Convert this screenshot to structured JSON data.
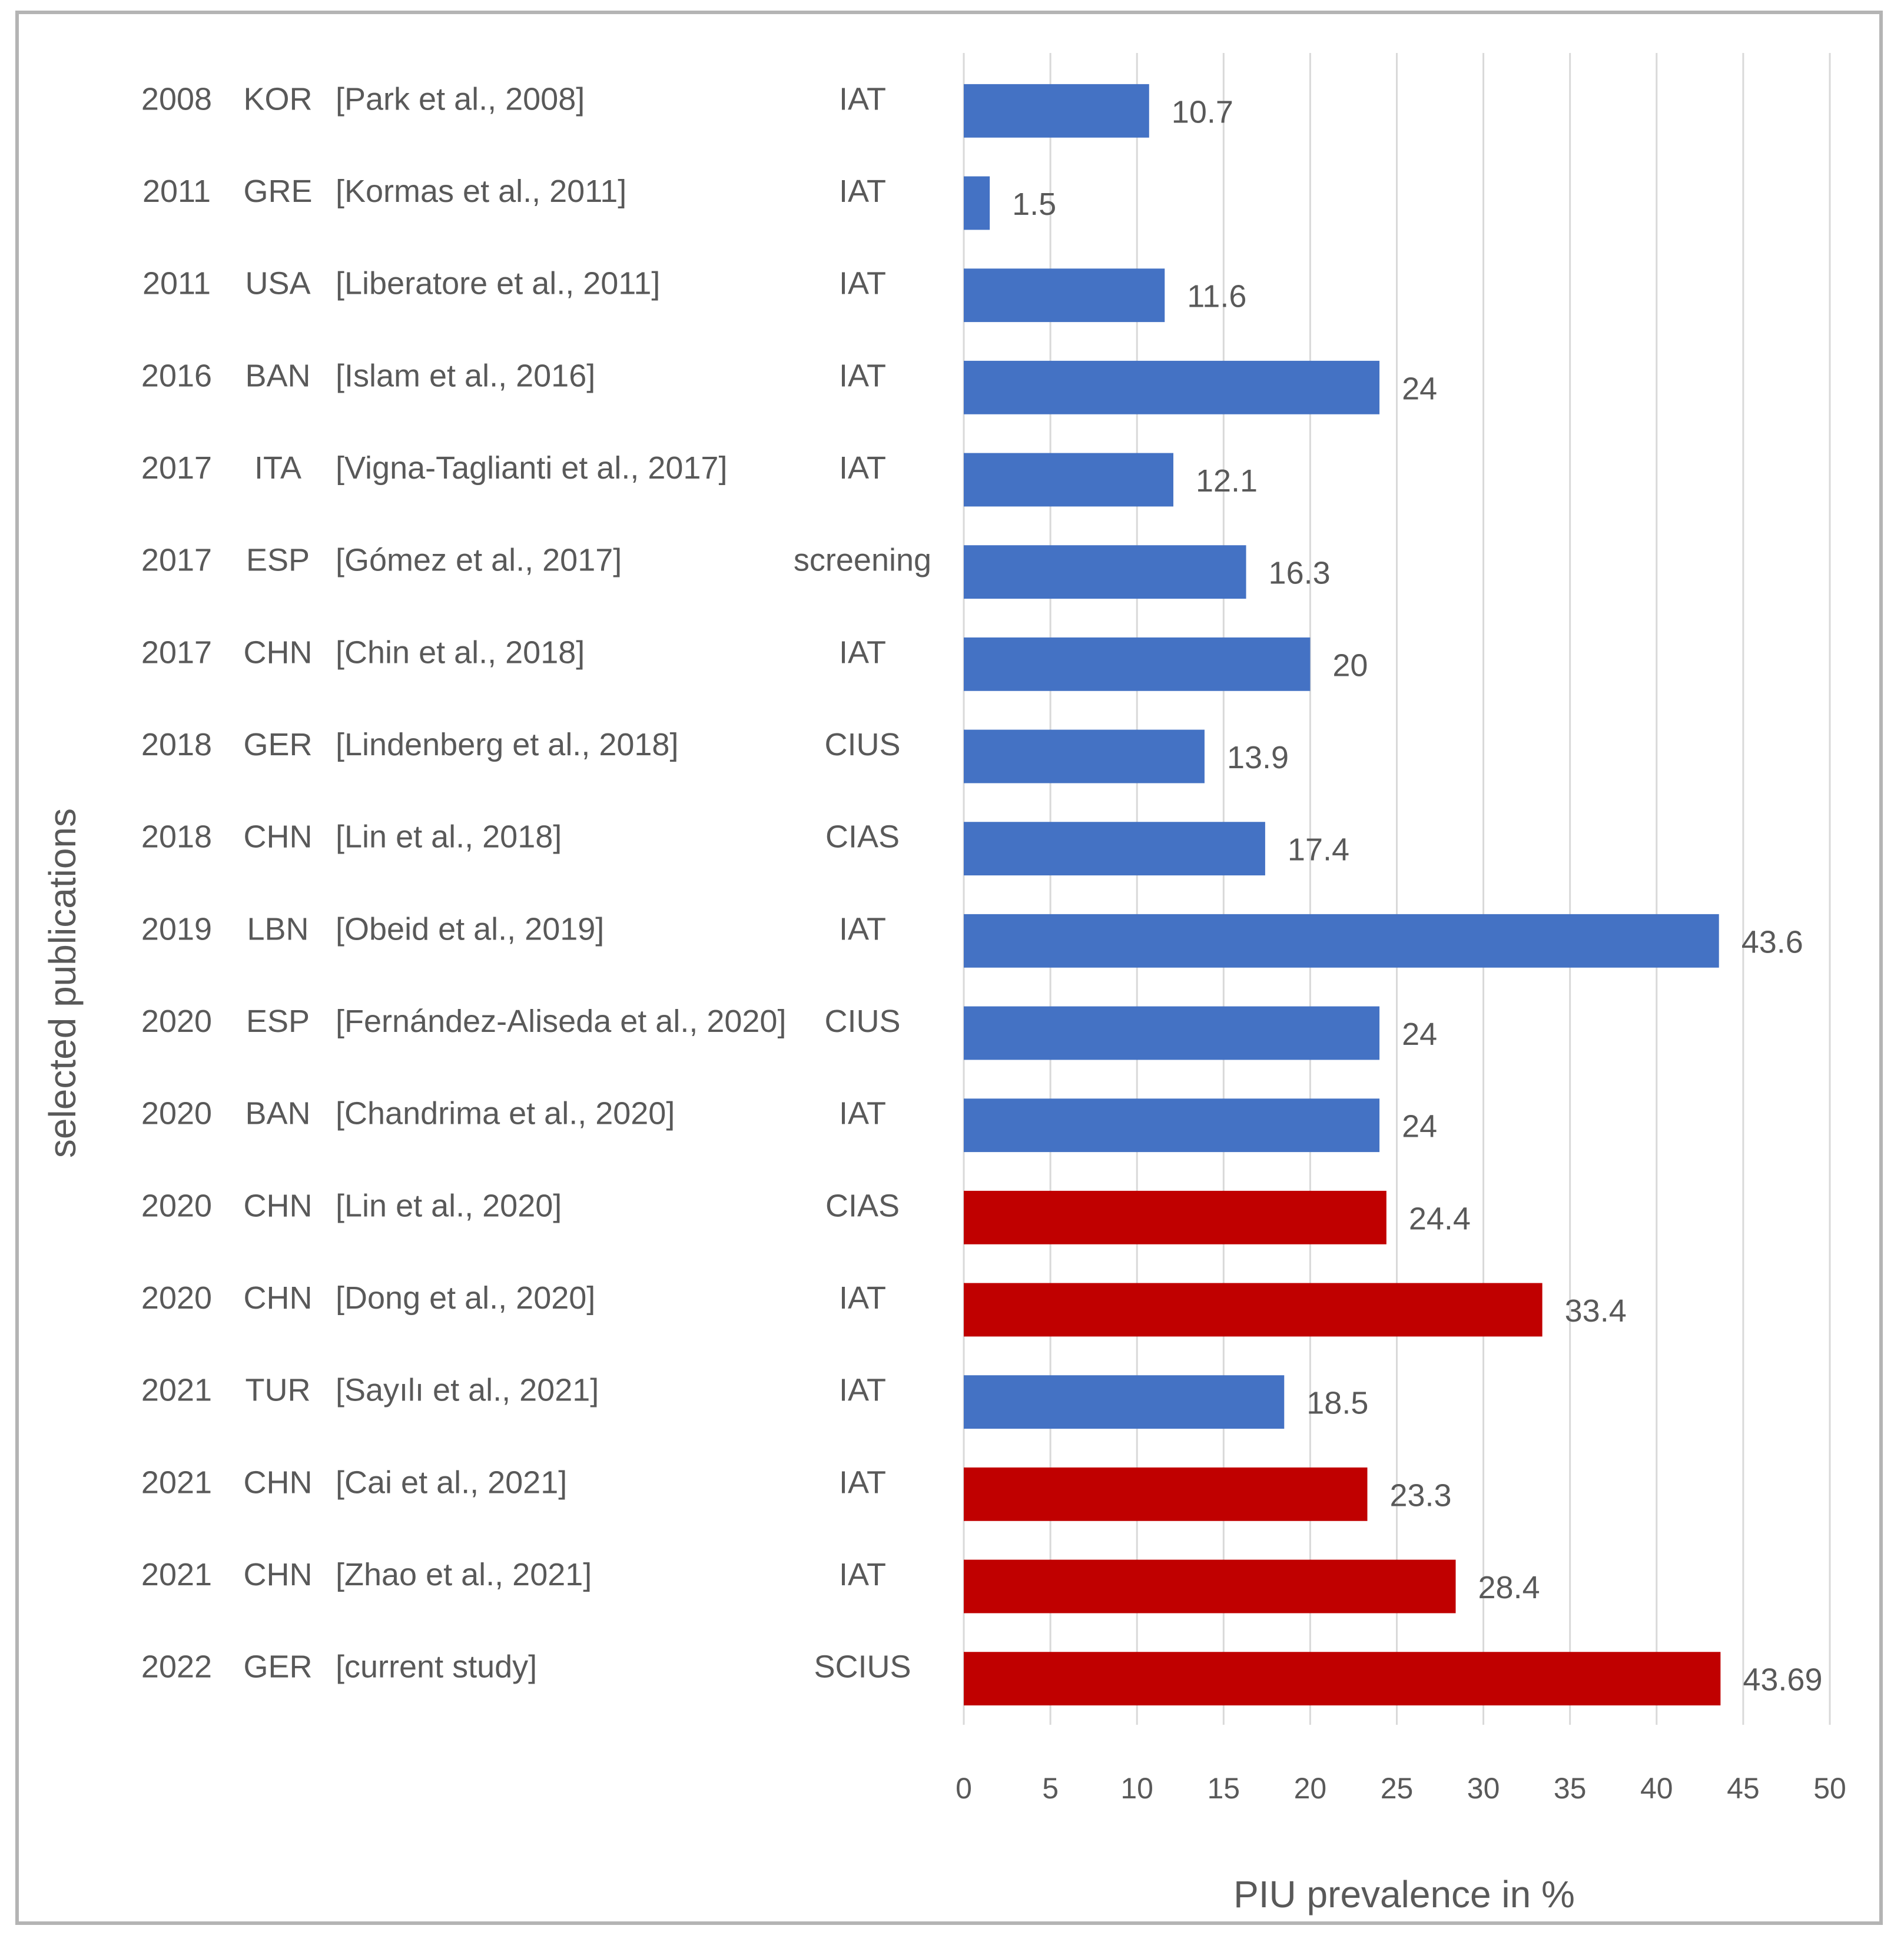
{
  "chart_data": {
    "type": "bar",
    "orientation": "horizontal",
    "xlabel": "PIU prevalence in %",
    "ylabel": "selected publications",
    "xlim": [
      0,
      50
    ],
    "xticks": [
      0,
      5,
      10,
      15,
      20,
      25,
      30,
      35,
      40,
      45,
      50
    ],
    "grid": true,
    "colors": {
      "blue": "#4472c4",
      "red": "#c00000"
    },
    "rows": [
      {
        "year": "2008",
        "country": "KOR",
        "ref": "[Park et al., 2008]",
        "instrument": "IAT",
        "value": 10.7,
        "label": "10.7",
        "color": "blue"
      },
      {
        "year": "2011",
        "country": "GRE",
        "ref": "[Kormas et al., 2011]",
        "instrument": "IAT",
        "value": 1.5,
        "label": "1.5",
        "color": "blue"
      },
      {
        "year": "2011",
        "country": "USA",
        "ref": "[Liberatore et al., 2011]",
        "instrument": "IAT",
        "value": 11.6,
        "label": "11.6",
        "color": "blue"
      },
      {
        "year": "2016",
        "country": "BAN",
        "ref": "[Islam et al., 2016]",
        "instrument": "IAT",
        "value": 24,
        "label": "24",
        "color": "blue"
      },
      {
        "year": "2017",
        "country": "ITA",
        "ref": "[Vigna-Taglianti et al., 2017]",
        "instrument": "IAT",
        "value": 12.1,
        "label": "12.1",
        "color": "blue"
      },
      {
        "year": "2017",
        "country": "ESP",
        "ref": "[Gómez et al., 2017]",
        "instrument": "screening",
        "value": 16.3,
        "label": "16.3",
        "color": "blue"
      },
      {
        "year": "2017",
        "country": "CHN",
        "ref": "[Chin et al., 2018]",
        "instrument": "IAT",
        "value": 20,
        "label": "20",
        "color": "blue"
      },
      {
        "year": "2018",
        "country": "GER",
        "ref": "[Lindenberg et al., 2018]",
        "instrument": "CIUS",
        "value": 13.9,
        "label": "13.9",
        "color": "blue"
      },
      {
        "year": "2018",
        "country": "CHN",
        "ref": "[Lin et al., 2018]",
        "instrument": "CIAS",
        "value": 17.4,
        "label": "17.4",
        "color": "blue"
      },
      {
        "year": "2019",
        "country": "LBN",
        "ref": "[Obeid et al., 2019]",
        "instrument": "IAT",
        "value": 43.6,
        "label": "43.6",
        "color": "blue"
      },
      {
        "year": "2020",
        "country": "ESP",
        "ref": "[Fernández-Aliseda et al., 2020]",
        "instrument": "CIUS",
        "value": 24,
        "label": "24",
        "color": "blue"
      },
      {
        "year": "2020",
        "country": "BAN",
        "ref": "[Chandrima et al., 2020]",
        "instrument": "IAT",
        "value": 24,
        "label": "24",
        "color": "blue"
      },
      {
        "year": "2020",
        "country": "CHN",
        "ref": "[Lin et al., 2020]",
        "instrument": "CIAS",
        "value": 24.4,
        "label": "24.4",
        "color": "red"
      },
      {
        "year": "2020",
        "country": "CHN",
        "ref": "[Dong et al., 2020]",
        "instrument": "IAT",
        "value": 33.4,
        "label": "33.4",
        "color": "red"
      },
      {
        "year": "2021",
        "country": "TUR",
        "ref": "[Sayılı et al., 2021]",
        "instrument": "IAT",
        "value": 18.5,
        "label": "18.5",
        "color": "blue"
      },
      {
        "year": "2021",
        "country": "CHN",
        "ref": "[Cai et al., 2021]",
        "instrument": "IAT",
        "value": 23.3,
        "label": "23.3",
        "color": "red"
      },
      {
        "year": "2021",
        "country": "CHN",
        "ref": "[Zhao et al., 2021]",
        "instrument": "IAT",
        "value": 28.4,
        "label": "28.4",
        "color": "red"
      },
      {
        "year": "2022",
        "country": "GER",
        "ref": "[current study]",
        "instrument": "SCIUS",
        "value": 43.69,
        "label": "43.69",
        "color": "red"
      }
    ]
  }
}
